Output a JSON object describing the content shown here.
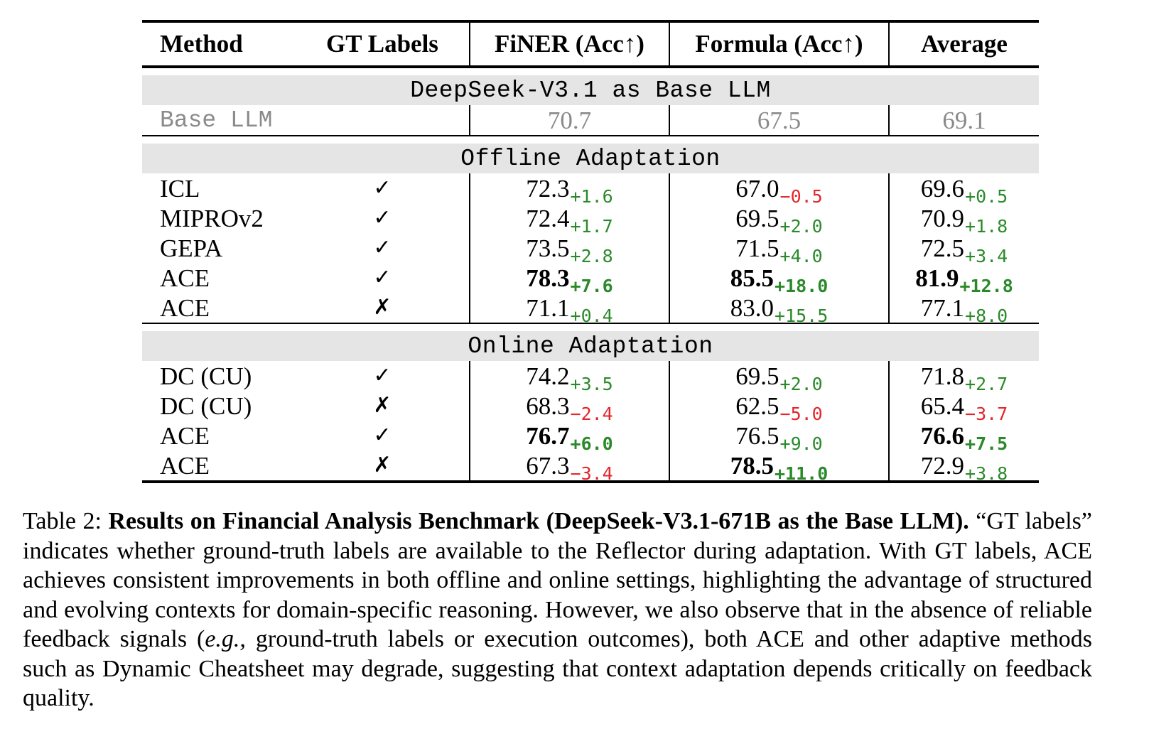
{
  "table": {
    "headers": {
      "method": "Method",
      "gt": "GT Labels",
      "finer": "FiNER (Acc↑)",
      "formula": "Formula (Acc↑)",
      "average": "Average"
    },
    "base_section": "DeepSeek-V3.1 as Base LLM",
    "base_row": {
      "method": "Base LLM",
      "finer": "70.7",
      "formula": "67.5",
      "average": "69.1"
    },
    "offline_section": "Offline Adaptation",
    "offline_rows": [
      {
        "method": "ICL",
        "gt": "✓",
        "finer": {
          "v": "72.3",
          "d": "+1.6",
          "bold": false
        },
        "formula": {
          "v": "67.0",
          "d": "−0.5",
          "bold": false
        },
        "average": {
          "v": "69.6",
          "d": "+0.5",
          "bold": false
        }
      },
      {
        "method": "MIPROv2",
        "gt": "✓",
        "finer": {
          "v": "72.4",
          "d": "+1.7",
          "bold": false
        },
        "formula": {
          "v": "69.5",
          "d": "+2.0",
          "bold": false
        },
        "average": {
          "v": "70.9",
          "d": "+1.8",
          "bold": false
        }
      },
      {
        "method": "GEPA",
        "gt": "✓",
        "finer": {
          "v": "73.5",
          "d": "+2.8",
          "bold": false
        },
        "formula": {
          "v": "71.5",
          "d": "+4.0",
          "bold": false
        },
        "average": {
          "v": "72.5",
          "d": "+3.4",
          "bold": false
        }
      },
      {
        "method": "ACE",
        "gt": "✓",
        "finer": {
          "v": "78.3",
          "d": "+7.6",
          "bold": true
        },
        "formula": {
          "v": "85.5",
          "d": "+18.0",
          "bold": true
        },
        "average": {
          "v": "81.9",
          "d": "+12.8",
          "bold": true
        }
      },
      {
        "method": "ACE",
        "gt": "✗",
        "finer": {
          "v": "71.1",
          "d": "+0.4",
          "bold": false
        },
        "formula": {
          "v": "83.0",
          "d": "+15.5",
          "bold": false
        },
        "average": {
          "v": "77.1",
          "d": "+8.0",
          "bold": false
        }
      }
    ],
    "online_section": "Online Adaptation",
    "online_rows": [
      {
        "method": "DC (CU)",
        "gt": "✓",
        "finer": {
          "v": "74.2",
          "d": "+3.5",
          "bold": false
        },
        "formula": {
          "v": "69.5",
          "d": "+2.0",
          "bold": false
        },
        "average": {
          "v": "71.8",
          "d": "+2.7",
          "bold": false
        }
      },
      {
        "method": "DC (CU)",
        "gt": "✗",
        "finer": {
          "v": "68.3",
          "d": "−2.4",
          "bold": false
        },
        "formula": {
          "v": "62.5",
          "d": "−5.0",
          "bold": false
        },
        "average": {
          "v": "65.4",
          "d": "−3.7",
          "bold": false
        }
      },
      {
        "method": "ACE",
        "gt": "✓",
        "finer": {
          "v": "76.7",
          "d": "+6.0",
          "bold": true
        },
        "formula": {
          "v": "76.5",
          "d": "+9.0",
          "bold": false
        },
        "average": {
          "v": "76.6",
          "d": "+7.5",
          "bold": true
        }
      },
      {
        "method": "ACE",
        "gt": "✗",
        "finer": {
          "v": "67.3",
          "d": "−3.4",
          "bold": false
        },
        "formula": {
          "v": "78.5",
          "d": "+11.0",
          "bold": true
        },
        "average": {
          "v": "72.9",
          "d": "+3.8",
          "bold": false
        }
      }
    ]
  },
  "colors": {
    "positive": "#2a8a2a",
    "negative": "#e3262b",
    "section_bg": "#e5e5e5",
    "base_text": "#8a8a8a"
  },
  "caption": {
    "label": "Table 2:",
    "title": "Results on Financial Analysis Benchmark (DeepSeek-V3.1-671B as the Base LLM).",
    "body_1": "“GT labels” indicates whether ground-truth labels are available to the Reflector during adaptation. With GT labels, ACE achieves consistent improvements in both offline and online settings, highlighting the advantage of structured and evolving contexts for domain-specific reasoning. However, we also observe that in the absence of reliable feedback signals (",
    "eg": "e.g.,",
    "body_2": " ground-truth labels or execution outcomes), both ACE and other adaptive methods such as Dynamic Cheatsheet may degrade, suggesting that context adaptation depends critically on feedback quality."
  }
}
